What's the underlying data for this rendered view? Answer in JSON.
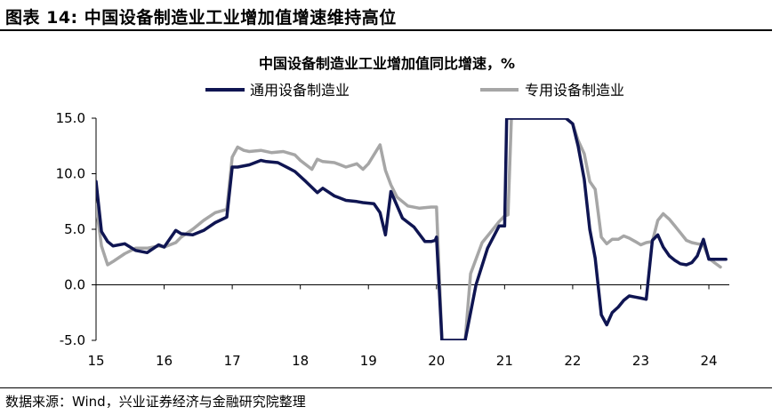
{
  "header": {
    "title": "图表 14: 中国设备制造业工业增加值增速维持高位"
  },
  "footer": {
    "source": "数据来源：Wind，兴业证券经济与金融研究院整理"
  },
  "colors": {
    "series_1": "#0f1552",
    "series_2": "#a6a6a6",
    "axis": "#000000"
  },
  "chart_data": {
    "type": "line",
    "title": "中国设备制造业工业增加值同比增速，%",
    "xlabel": "",
    "ylabel": "",
    "xlim": [
      2015.0,
      2024.3
    ],
    "ylim": [
      -5.0,
      15.0
    ],
    "yticks": [
      "15.0",
      "10.0",
      "5.0",
      "0.0",
      "-5.0"
    ],
    "ytick_values": [
      15,
      10,
      5,
      0,
      -5
    ],
    "xticks": [
      "15",
      "16",
      "17",
      "18",
      "19",
      "20",
      "21",
      "22",
      "23",
      "24"
    ],
    "xtick_values": [
      2015,
      2016,
      2017,
      2018,
      2019,
      2020,
      2021,
      2022,
      2023,
      2024
    ],
    "legend_position": "top",
    "grid": false,
    "series": [
      {
        "name": "通用设备制造业",
        "color": "#0f1552",
        "x": [
          2015.0,
          2015.08,
          2015.17,
          2015.25,
          2015.42,
          2015.58,
          2015.75,
          2015.92,
          2016.0,
          2016.17,
          2016.25,
          2016.42,
          2016.58,
          2016.75,
          2016.92,
          2017.0,
          2017.08,
          2017.25,
          2017.42,
          2017.5,
          2017.67,
          2017.83,
          2017.92,
          2018.08,
          2018.25,
          2018.33,
          2018.5,
          2018.67,
          2018.83,
          2018.92,
          2019.08,
          2019.17,
          2019.25,
          2019.33,
          2019.5,
          2019.67,
          2019.83,
          2019.92,
          2019.98,
          2020.0,
          2020.08,
          2020.42,
          2020.58,
          2020.75,
          2020.92,
          2021.0,
          2021.03,
          2021.1,
          2021.25,
          2021.4,
          2021.55,
          2021.7,
          2021.8,
          2021.9,
          2022.0,
          2022.08,
          2022.17,
          2022.25,
          2022.33,
          2022.42,
          2022.5,
          2022.58,
          2022.67,
          2022.75,
          2022.83,
          2022.92,
          2023.0,
          2023.08,
          2023.17,
          2023.25,
          2023.33,
          2023.42,
          2023.5,
          2023.58,
          2023.67,
          2023.75,
          2023.83,
          2023.92,
          2024.0,
          2024.08,
          2024.17,
          2024.25
        ],
        "values": [
          9.3,
          4.8,
          3.9,
          3.5,
          3.7,
          3.1,
          2.9,
          3.6,
          3.4,
          4.9,
          4.6,
          4.5,
          4.9,
          5.6,
          6.1,
          10.6,
          10.6,
          10.8,
          11.2,
          11.1,
          11.0,
          10.5,
          10.2,
          9.3,
          8.3,
          8.7,
          8.0,
          7.6,
          7.5,
          7.4,
          7.3,
          6.5,
          4.5,
          8.4,
          6.0,
          5.2,
          3.9,
          3.9,
          4.0,
          4.3,
          -5.0,
          -5.0,
          0.0,
          3.3,
          5.3,
          5.3,
          15.0,
          15.0,
          15.0,
          15.0,
          15.0,
          15.0,
          15.0,
          15.0,
          14.5,
          12.5,
          9.5,
          5.0,
          2.4,
          -2.7,
          -3.6,
          -2.5,
          -2.0,
          -1.4,
          -1.0,
          -1.1,
          -1.2,
          -1.3,
          4.0,
          4.5,
          3.4,
          2.6,
          2.2,
          1.9,
          1.8,
          2.0,
          2.6,
          4.1,
          2.3,
          2.3,
          2.3,
          2.3
        ],
        "breaks_below": -5.0,
        "breaks_above": 15.0
      },
      {
        "name": "专用设备制造业",
        "color": "#a6a6a6",
        "x": [
          2015.0,
          2015.08,
          2015.17,
          2015.25,
          2015.42,
          2015.58,
          2015.75,
          2015.92,
          2016.0,
          2016.17,
          2016.25,
          2016.42,
          2016.58,
          2016.75,
          2016.92,
          2017.0,
          2017.08,
          2017.17,
          2017.25,
          2017.42,
          2017.58,
          2017.75,
          2017.92,
          2018.0,
          2018.17,
          2018.25,
          2018.33,
          2018.5,
          2018.67,
          2018.83,
          2018.92,
          2019.0,
          2019.17,
          2019.25,
          2019.33,
          2019.42,
          2019.58,
          2019.75,
          2019.92,
          2020.0,
          2020.08,
          2020.42,
          2020.5,
          2020.67,
          2020.83,
          2020.92,
          2021.0,
          2021.05,
          2021.1,
          2021.3,
          2021.5,
          2021.7,
          2021.8,
          2021.9,
          2022.0,
          2022.08,
          2022.17,
          2022.25,
          2022.33,
          2022.42,
          2022.5,
          2022.58,
          2022.67,
          2022.75,
          2022.83,
          2022.92,
          2023.0,
          2023.08,
          2023.17,
          2023.25,
          2023.33,
          2023.42,
          2023.5,
          2023.58,
          2023.67,
          2023.75,
          2023.83,
          2023.92,
          2024.0,
          2024.08,
          2024.17
        ],
        "values": [
          7.2,
          3.5,
          1.8,
          2.1,
          2.8,
          3.3,
          3.3,
          3.5,
          3.4,
          3.8,
          4.3,
          5.0,
          5.8,
          6.5,
          6.8,
          11.5,
          12.4,
          12.1,
          12.0,
          12.1,
          11.9,
          12.0,
          11.7,
          11.2,
          10.4,
          11.3,
          11.1,
          11.0,
          10.6,
          10.9,
          10.4,
          10.9,
          12.6,
          10.3,
          9.0,
          7.9,
          7.1,
          6.9,
          7.0,
          7.0,
          -5.0,
          -5.0,
          1.0,
          3.8,
          5.0,
          5.7,
          6.2,
          6.3,
          15.0,
          15.0,
          15.0,
          15.0,
          15.0,
          15.0,
          14.5,
          13.0,
          11.8,
          9.3,
          8.6,
          4.3,
          3.7,
          4.1,
          4.1,
          4.4,
          4.2,
          3.9,
          3.6,
          3.8,
          3.9,
          5.8,
          6.4,
          5.9,
          5.3,
          4.7,
          4.0,
          3.8,
          3.7,
          3.6,
          2.4,
          2.0,
          1.6
        ],
        "breaks_below": -5.0,
        "breaks_above": 15.0
      }
    ]
  }
}
